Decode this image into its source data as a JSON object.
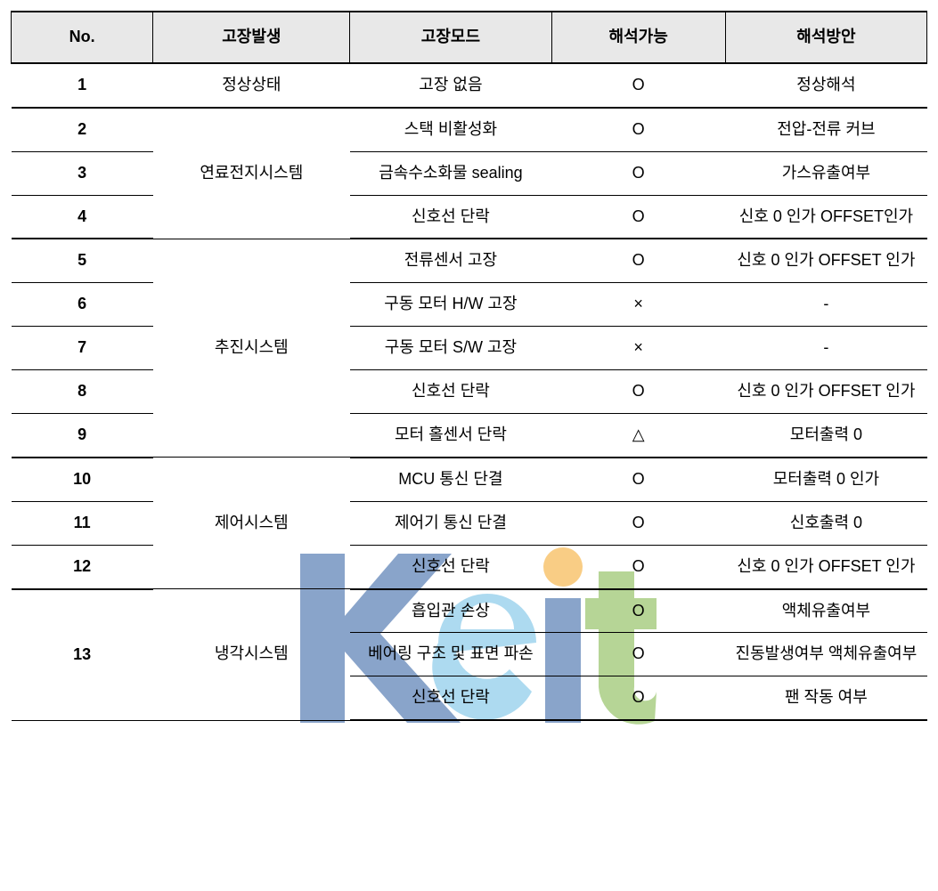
{
  "columns": {
    "no": "No.",
    "occurrence": "고장발생",
    "mode": "고장모드",
    "analyzable": "해석가능",
    "method": "해석방안"
  },
  "symbols": {
    "circle": "O",
    "cross": "×",
    "triangle": "△",
    "dash": "-"
  },
  "rows": [
    {
      "no": "1",
      "occurrence": "정상상태",
      "mode": "고장 없음",
      "analyzable": "O",
      "method": "정상해석"
    },
    {
      "no": "2",
      "occurrence": "연료전지시스템",
      "occurrence_rowspan": 3,
      "mode": "스택 비활성화",
      "analyzable": "O",
      "method": "전압-전류 커브"
    },
    {
      "no": "3",
      "mode": "금속수소화물 sealing",
      "analyzable": "O",
      "method": "가스유출여부"
    },
    {
      "no": "4",
      "mode": "신호선 단락",
      "analyzable": "O",
      "method": "신호 0 인가 OFFSET인가"
    },
    {
      "no": "5",
      "occurrence": "추진시스템",
      "occurrence_rowspan": 5,
      "mode": "전류센서 고장",
      "analyzable": "O",
      "method": "신호 0 인가 OFFSET 인가"
    },
    {
      "no": "6",
      "mode": "구동 모터 H/W 고장",
      "analyzable": "×",
      "method": "-"
    },
    {
      "no": "7",
      "mode": "구동 모터 S/W 고장",
      "analyzable": "×",
      "method": "-"
    },
    {
      "no": "8",
      "mode": "신호선 단락",
      "analyzable": "O",
      "method": "신호 0 인가 OFFSET 인가"
    },
    {
      "no": "9",
      "mode": "모터 홀센서 단락",
      "analyzable": "△",
      "method": "모터출력 0"
    },
    {
      "no": "10",
      "occurrence": "제어시스템",
      "occurrence_rowspan": 3,
      "mode": "MCU 통신 단결",
      "analyzable": "O",
      "method": "모터출력 0 인가"
    },
    {
      "no": "11",
      "mode": "제어기 통신 단결",
      "analyzable": "O",
      "method": "신호출력 0"
    },
    {
      "no": "12",
      "mode": "신호선 단락",
      "analyzable": "O",
      "method": "신호 0 인가 OFFSET 인가"
    },
    {
      "no": "13",
      "no_rowspan": 3,
      "occurrence": "냉각시스템",
      "occurrence_rowspan": 3,
      "mode": "흡입관 손상",
      "analyzable": "O",
      "method": "액체유출여부"
    },
    {
      "mode": "베어링 구조 및 표면 파손",
      "analyzable": "O",
      "method": "진동발생여부 액체유출여부"
    },
    {
      "mode": "신호선 단락",
      "analyzable": "O",
      "method": "팬 작동 여부"
    }
  ],
  "style": {
    "header_bg": "#e8e8e8",
    "border_color": "#000000",
    "heavy_border_width": 2,
    "light_border_width": 1,
    "font_size": 18,
    "header_font_weight": "bold"
  },
  "watermark": {
    "text": "Keit",
    "colors": {
      "k": "#2a5aa0",
      "e": "#6bbde4",
      "i_dot": "#f5a623",
      "i_stem": "#2a5aa0",
      "t": "#7cb342"
    }
  }
}
